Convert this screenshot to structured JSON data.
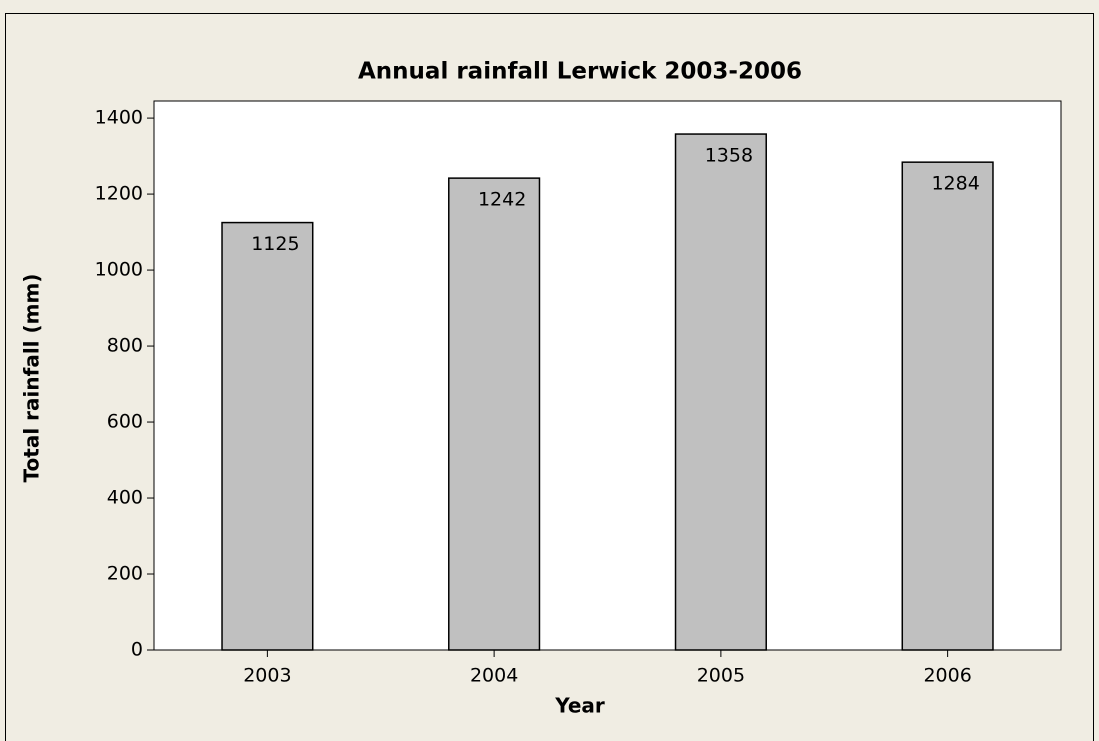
{
  "chart_data": {
    "type": "bar",
    "title": "Annual rainfall Lerwick 2003-2006",
    "x_label": "Year",
    "y_label": "Total rainfall (mm)",
    "categories": [
      "2003",
      "2004",
      "2005",
      "2006"
    ],
    "values": [
      1125,
      1242,
      1358,
      1284
    ],
    "color": "#c0c0c0",
    "ylim": [
      0,
      1445
    ],
    "yticks": [
      0,
      200,
      400,
      600,
      800,
      1000,
      1200,
      1400
    ]
  }
}
